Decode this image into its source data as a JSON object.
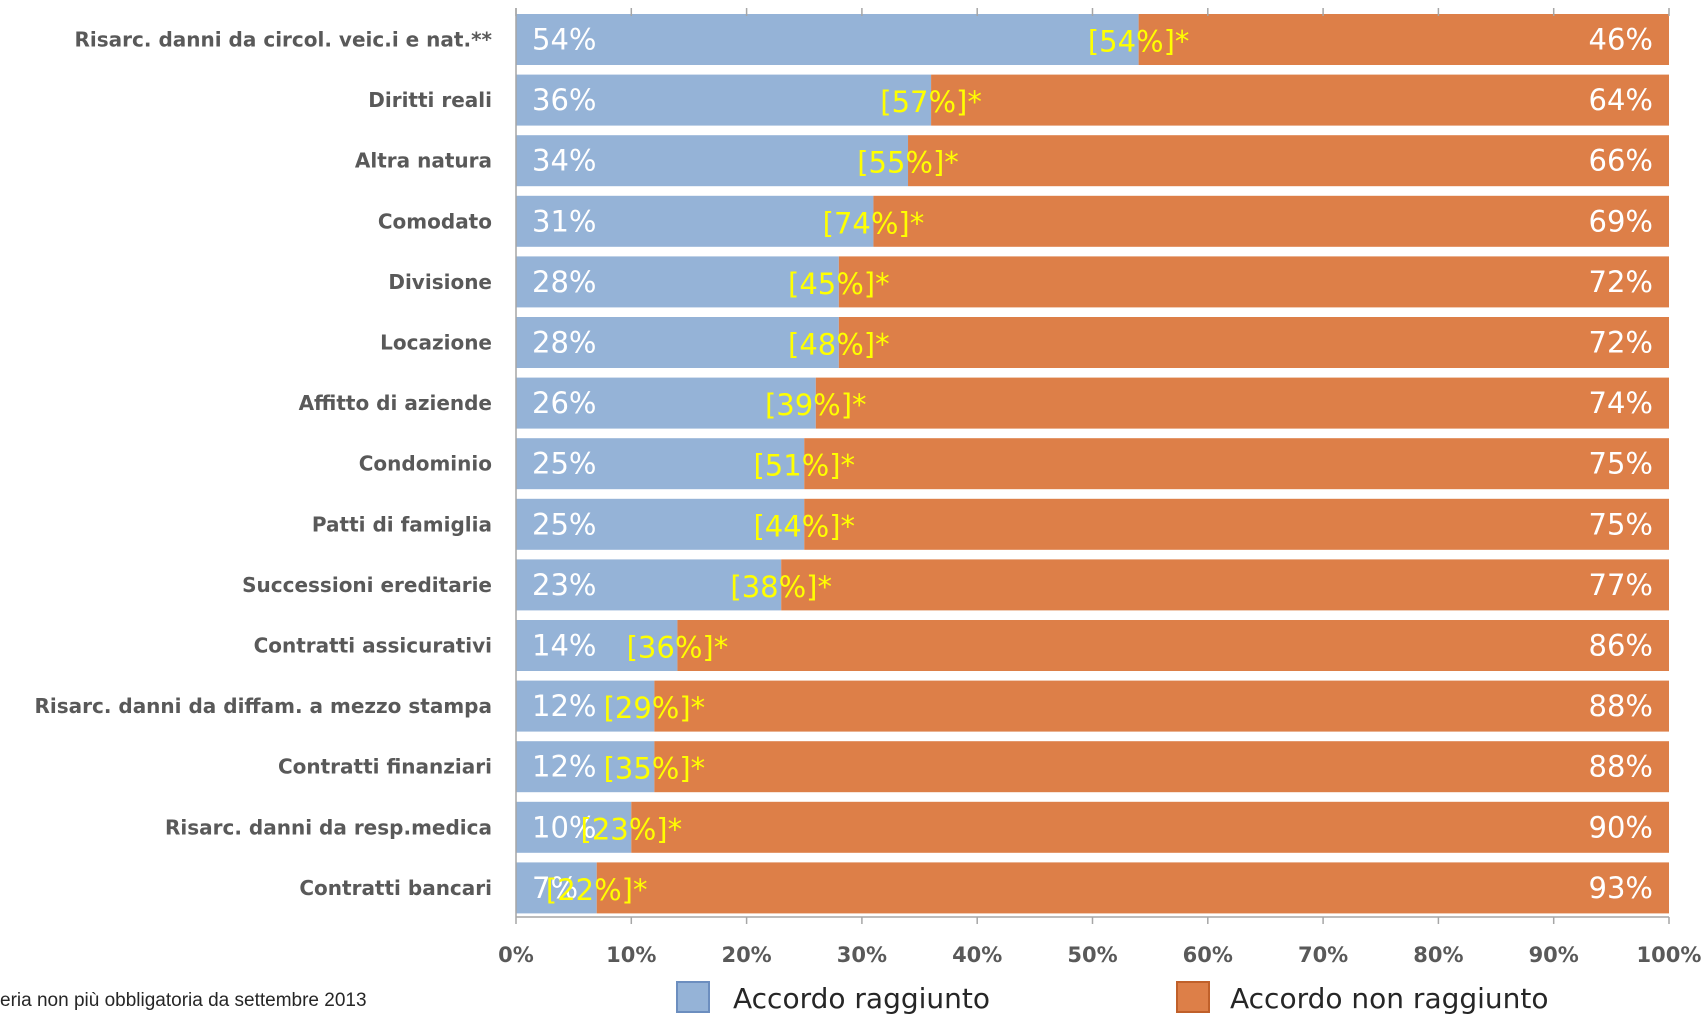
{
  "chart_data": {
    "type": "bar",
    "orientation": "horizontal",
    "stacked": "100%",
    "categories": [
      "Risarc. danni da circol. veic.i e nat.**",
      "Diritti reali",
      "Altra natura",
      "Comodato",
      "Divisione",
      "Locazione",
      "Affitto di aziende",
      "Condominio",
      "Patti di famiglia",
      "Successioni ereditarie",
      "Contratti assicurativi",
      "Risarc. danni da diffam. a mezzo stampa",
      "Contratti finanziari",
      "Risarc. danni da resp.medica",
      "Contratti bancari"
    ],
    "series": [
      {
        "name": "Accordo raggiunto",
        "color": "#95b3d7",
        "values": [
          54,
          36,
          34,
          31,
          28,
          28,
          26,
          25,
          25,
          23,
          14,
          12,
          12,
          10,
          7
        ],
        "labels": [
          "54%",
          "36%",
          "34%",
          "31%",
          "28%",
          "28%",
          "26%",
          "25%",
          "25%",
          "23%",
          "14%",
          "12%",
          "12%",
          "10%",
          "7%"
        ]
      },
      {
        "name": "Accordo non raggiunto",
        "color": "#dd7f48",
        "values": [
          46,
          64,
          66,
          69,
          72,
          72,
          74,
          75,
          75,
          77,
          86,
          88,
          88,
          90,
          93
        ],
        "labels": [
          "46%",
          "64%",
          "66%",
          "69%",
          "72%",
          "72%",
          "74%",
          "75%",
          "75%",
          "77%",
          "86%",
          "88%",
          "88%",
          "90%",
          "93%"
        ]
      }
    ],
    "annotations": {
      "color": "#ffff00",
      "labels": [
        "[54%]*",
        "[57%]*",
        "[55%]*",
        "[74%]*",
        "[45%]*",
        "[48%]*",
        "[39%]*",
        "[51%]*",
        "[44%]*",
        "[38%]*",
        "[36%]*",
        "[29%]*",
        "[35%]*",
        "[23%]*",
        "[22%]*"
      ]
    },
    "xaxis": {
      "ticks": [
        "0%",
        "10%",
        "20%",
        "30%",
        "40%",
        "50%",
        "60%",
        "70%",
        "80%",
        "90%",
        "100%"
      ],
      "xlim": [
        0,
        100
      ]
    },
    "grid": false,
    "legend": {
      "position": "bottom",
      "entries": [
        "Accordo raggiunto",
        "Accordo non raggiunto"
      ]
    }
  },
  "footnote": "eria non più obbligatoria da settembre 2013"
}
